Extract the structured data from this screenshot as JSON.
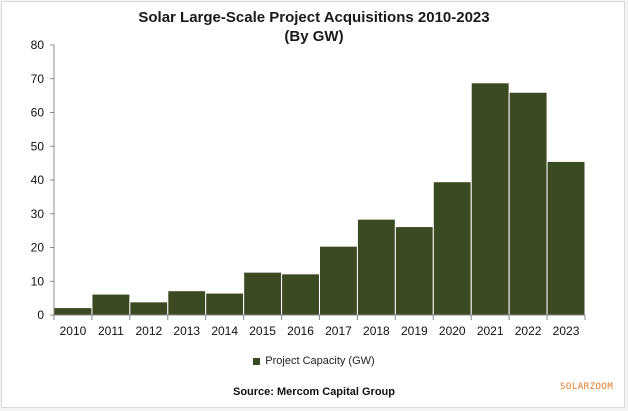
{
  "colors": {
    "bar": "#3c4a22",
    "bar_border": "#ffffff",
    "axis": "#888888",
    "accent": "#e87722"
  },
  "source": "Source: Mercom Capital Group",
  "watermark": "SOLARZOOM",
  "chart_data": {
    "type": "bar",
    "title": "Solar Large-Scale Project Acquisitions 2010-2023",
    "subtitle": "(By GW)",
    "categories": [
      "2010",
      "2011",
      "2012",
      "2013",
      "2014",
      "2015",
      "2016",
      "2017",
      "2018",
      "2019",
      "2020",
      "2021",
      "2022",
      "2023"
    ],
    "series": [
      {
        "name": "Project Capacity (GW)",
        "values": [
          2.2,
          6.2,
          3.9,
          7.2,
          6.5,
          12.7,
          12.2,
          20.4,
          28.4,
          26.2,
          39.5,
          68.8,
          66.0,
          45.5
        ]
      }
    ],
    "ylim": [
      0,
      80
    ],
    "yticks": [
      0,
      10,
      20,
      30,
      40,
      50,
      60,
      70,
      80
    ],
    "legend_position": "bottom",
    "grid": false
  }
}
